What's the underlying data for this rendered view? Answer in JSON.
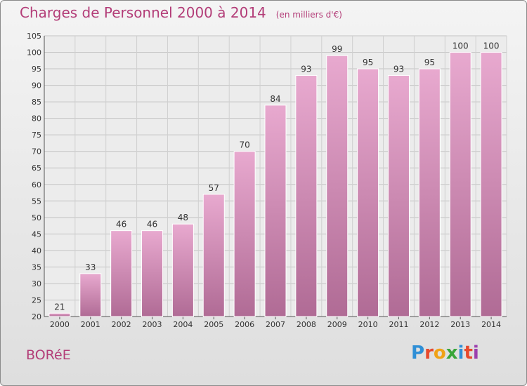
{
  "chart_data": {
    "type": "bar",
    "title": "Charges de Personnel 2000 à 2014",
    "subtitle": "(en milliers d'€)",
    "categories": [
      "2000",
      "2001",
      "2002",
      "2003",
      "2004",
      "2005",
      "2006",
      "2007",
      "2008",
      "2009",
      "2010",
      "2011",
      "2012",
      "2013",
      "2014"
    ],
    "values": [
      21,
      33,
      46,
      46,
      48,
      57,
      70,
      84,
      93,
      99,
      95,
      93,
      95,
      100,
      100
    ],
    "ylim": [
      20,
      105
    ],
    "yticks": [
      20,
      25,
      30,
      35,
      40,
      45,
      50,
      55,
      60,
      65,
      70,
      75,
      80,
      85,
      90,
      95,
      100,
      105
    ],
    "xlabel": "",
    "ylabel": "",
    "grid": true,
    "bar_color": "#d68ab4"
  },
  "footer": {
    "commune": "BORéE",
    "brand": "Proxiti",
    "brand_colors": [
      "#2f8fd6",
      "#e7492c",
      "#f0a216",
      "#3aa53a",
      "#2f8fd6",
      "#e7492c",
      "#9b3fae"
    ]
  },
  "colors": {
    "accent": "#b33d78"
  }
}
